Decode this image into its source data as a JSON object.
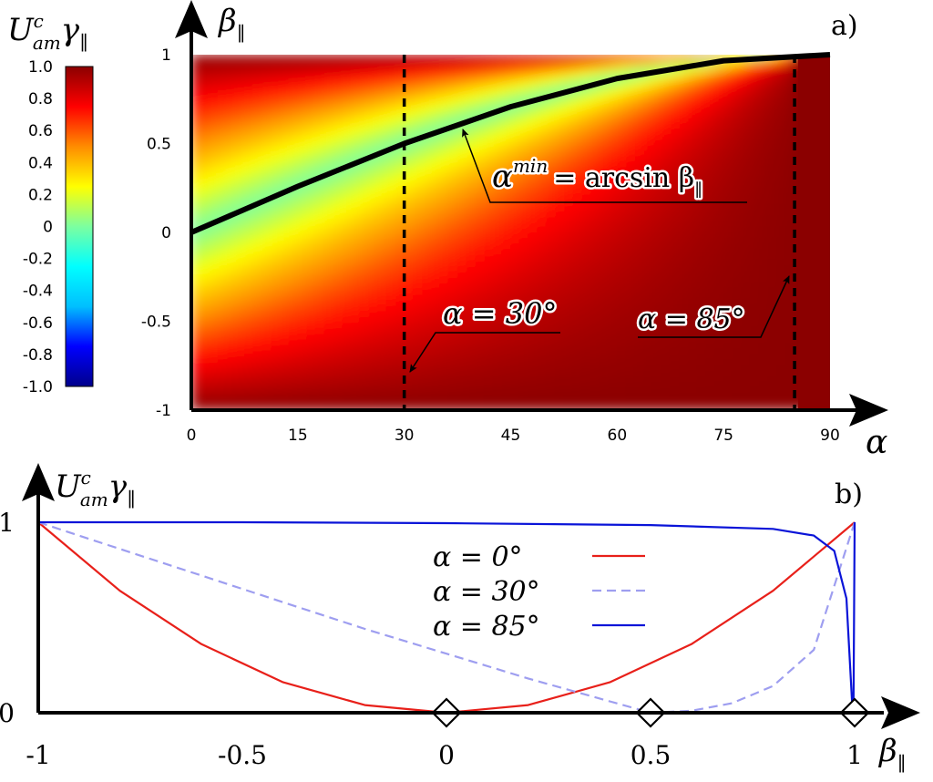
{
  "chart_data": [
    {
      "panel_label": "a)",
      "type": "heatmap",
      "y_axis_label_base": "β",
      "y_axis_label_sub": "‖",
      "x_axis_label": "α",
      "x_ticks": [
        "0",
        "15",
        "30",
        "45",
        "60",
        "75",
        "90"
      ],
      "y_ticks": [
        "-1",
        "-0.5",
        "0",
        "0.5",
        "1"
      ],
      "xlim": [
        0,
        90
      ],
      "ylim": [
        -1,
        1
      ],
      "colorbar": {
        "label_base": "U",
        "label_sup": "c",
        "label_sub": "am",
        "label_gamma": "γ",
        "label_gamma_sub": "‖",
        "ticks": [
          "1.0",
          "0.8",
          "0.6",
          "0.4",
          "0.2",
          "0",
          "-0.2",
          "-0.4",
          "-0.6",
          "-0.8",
          "-1.0"
        ],
        "range": [
          -1,
          1
        ],
        "colors": [
          "#00008b",
          "#0000ff",
          "#00bfff",
          "#00ffff",
          "#7cffa0",
          "#ffff00",
          "#ff8c00",
          "#ff0000",
          "#8b0000"
        ]
      },
      "curve": {
        "formula": "β‖ = sin α",
        "points": [
          [
            0,
            0.0
          ],
          [
            15,
            0.259
          ],
          [
            30,
            0.5
          ],
          [
            45,
            0.707
          ],
          [
            60,
            0.866
          ],
          [
            75,
            0.966
          ],
          [
            90,
            1.0
          ]
        ]
      },
      "vertical_lines": [
        30,
        85
      ],
      "annotations": {
        "curve_label_lhs": "α",
        "curve_label_sup": "min",
        "curve_label_rhs": "= arcsin β",
        "curve_label_sub": "‖",
        "line30_label": "α = 30°",
        "line85_label": "α = 85°"
      }
    },
    {
      "panel_label": "b)",
      "type": "line",
      "y_axis_label_base": "U",
      "y_axis_label_sup": "c",
      "y_axis_label_sub": "am",
      "y_axis_label_gamma": "γ",
      "y_axis_label_gamma_sub": "‖",
      "x_axis_label_base": "β",
      "x_axis_label_sub": "‖",
      "x_ticks": [
        "-1",
        "-0.5",
        "0",
        "0.5",
        "1"
      ],
      "y_ticks": [
        "0",
        "1"
      ],
      "xlim": [
        -1,
        1
      ],
      "ylim": [
        0,
        1
      ],
      "series": [
        {
          "name": "α = 0°",
          "color": "#e8201a",
          "dash": false,
          "points": [
            [
              -1,
              1.0
            ],
            [
              -0.8,
              0.64
            ],
            [
              -0.6,
              0.36
            ],
            [
              -0.4,
              0.16
            ],
            [
              -0.2,
              0.04
            ],
            [
              0,
              0.0
            ],
            [
              0.2,
              0.04
            ],
            [
              0.4,
              0.16
            ],
            [
              0.6,
              0.36
            ],
            [
              0.8,
              0.64
            ],
            [
              1,
              1.0
            ]
          ]
        },
        {
          "name": "α = 30°",
          "color": "#9e9ef0",
          "dash": true,
          "points": [
            [
              -1,
              1.0
            ],
            [
              -0.8,
              0.86
            ],
            [
              -0.6,
              0.72
            ],
            [
              -0.4,
              0.58
            ],
            [
              -0.2,
              0.44
            ],
            [
              0,
              0.31
            ],
            [
              0.2,
              0.18
            ],
            [
              0.4,
              0.06
            ],
            [
              0.5,
              0.0
            ],
            [
              0.6,
              0.01
            ],
            [
              0.7,
              0.05
            ],
            [
              0.8,
              0.14
            ],
            [
              0.9,
              0.33
            ],
            [
              1,
              1.0
            ]
          ]
        },
        {
          "name": "α = 85°",
          "color": "#0a14d8",
          "dash": false,
          "points": [
            [
              -1,
              1.0
            ],
            [
              -0.5,
              1.0
            ],
            [
              0,
              0.995
            ],
            [
              0.5,
              0.985
            ],
            [
              0.8,
              0.965
            ],
            [
              0.9,
              0.93
            ],
            [
              0.95,
              0.85
            ],
            [
              0.98,
              0.6
            ],
            [
              0.995,
              0.0
            ],
            [
              0.997,
              0.0
            ],
            [
              1,
              1.0
            ]
          ]
        }
      ],
      "markers_x": [
        0,
        0.5,
        1
      ]
    }
  ]
}
